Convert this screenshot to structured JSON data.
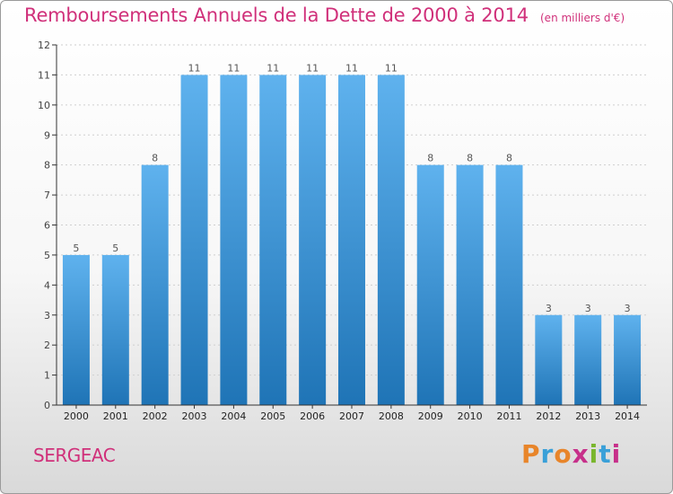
{
  "header": {
    "title": "Remboursements Annuels de la Dette de 2000 à 2014",
    "unit": "(en milliers d'€)"
  },
  "footer": {
    "commune": "SERGEAC",
    "brand": "Proxiti"
  },
  "colors": {
    "accent": "#d0307a",
    "bar_top": "#5fb2ee",
    "bar_bottom": "#1f74b6",
    "axis": "#333333",
    "grid": "#cfcfcf"
  },
  "chart_data": {
    "type": "bar",
    "categories": [
      "2000",
      "2001",
      "2002",
      "2003",
      "2004",
      "2005",
      "2006",
      "2007",
      "2008",
      "2009",
      "2010",
      "2011",
      "2012",
      "2013",
      "2014"
    ],
    "values": [
      5,
      5,
      8,
      11,
      11,
      11,
      11,
      11,
      11,
      8,
      8,
      8,
      3,
      3,
      3
    ],
    "title": "Remboursements Annuels de la Dette de 2000 à 2014",
    "subtitle": "(en milliers d'€)",
    "ylim": [
      0,
      12
    ],
    "yticks": [
      0,
      1,
      2,
      3,
      4,
      5,
      6,
      7,
      8,
      9,
      10,
      11,
      12
    ],
    "grid": true,
    "data_labels": true
  }
}
